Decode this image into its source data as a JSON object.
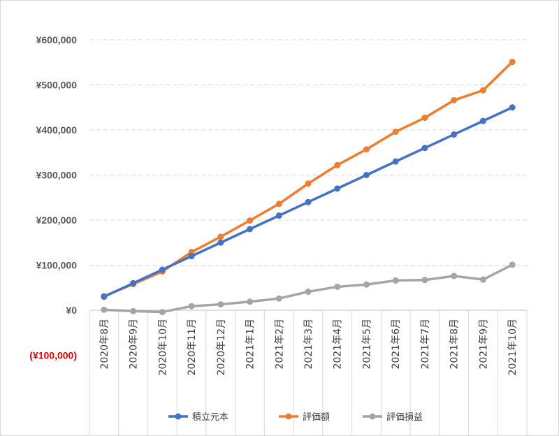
{
  "chart_data": {
    "type": "line",
    "categories": [
      "2020年8月",
      "2020年9月",
      "2020年10月",
      "2020年11月",
      "2020年12月",
      "2021年1月",
      "2021年2月",
      "2021年3月",
      "2021年4月",
      "2021年5月",
      "2021年6月",
      "2021年7月",
      "2021年8月",
      "2021年9月",
      "2021年10月"
    ],
    "series": [
      {
        "name": "積立元本",
        "color": "#4472c4",
        "values": [
          30000,
          60000,
          90000,
          120000,
          150000,
          180000,
          210000,
          240000,
          270000,
          300000,
          330000,
          360000,
          390000,
          420000,
          450000
        ]
      },
      {
        "name": "評価額",
        "color": "#ed7d31",
        "values": [
          31000,
          58000,
          86000,
          129000,
          163000,
          199000,
          236000,
          281000,
          322000,
          357000,
          396000,
          427000,
          466000,
          488000,
          551000
        ]
      },
      {
        "name": "評価損益",
        "color": "#a5a5a5",
        "values": [
          1000,
          -2000,
          -4000,
          9000,
          13000,
          19000,
          26000,
          41000,
          52000,
          57000,
          66000,
          67000,
          76000,
          68000,
          101000
        ]
      }
    ],
    "yticks": [
      {
        "value": 600000,
        "label": "¥600,000"
      },
      {
        "value": 500000,
        "label": "¥500,000"
      },
      {
        "value": 400000,
        "label": "¥400,000"
      },
      {
        "value": 300000,
        "label": "¥300,000"
      },
      {
        "value": 200000,
        "label": "¥200,000"
      },
      {
        "value": 100000,
        "label": "¥100,000"
      },
      {
        "value": 0,
        "label": "¥0"
      },
      {
        "value": -100000,
        "label": "(¥100,000)"
      }
    ],
    "ylim": [
      -100000,
      600000
    ],
    "negative_label_color": "#e00000",
    "grid": true,
    "legend_position": "bottom",
    "title": "",
    "xlabel": "",
    "ylabel": ""
  }
}
